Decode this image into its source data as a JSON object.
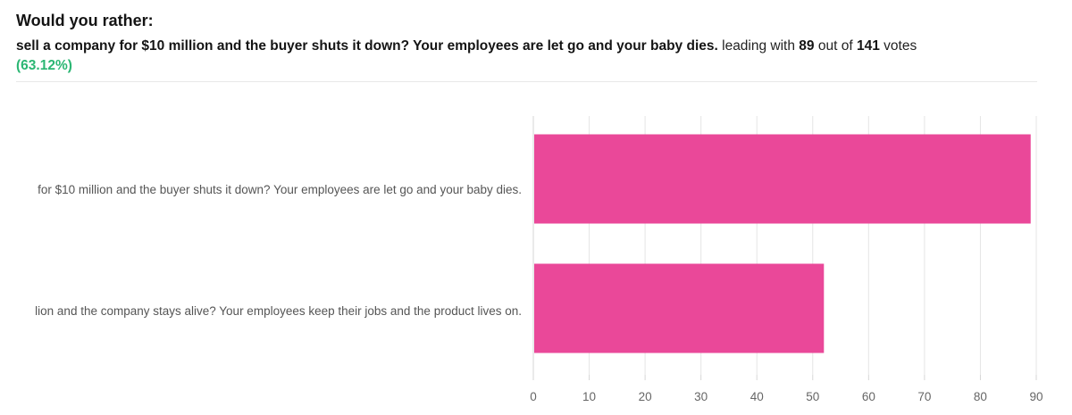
{
  "header": {
    "title": "Would you rather:",
    "leading_option": "sell a company for $10 million and the buyer shuts it down? Your employees are let go and your baby dies.",
    "leading_prefix": "leading with",
    "leading_votes": "89",
    "out_of": "out of",
    "total_votes": "141",
    "votes_word": "votes",
    "percentage": "(63.12%)"
  },
  "colors": {
    "bar": "#ea4899",
    "percent": "#2bb673",
    "grid": "#e5e5e5"
  },
  "chart_data": {
    "type": "bar",
    "orientation": "horizontal",
    "categories": [
      "for $10 million and the buyer shuts it down? Your employees are let go and your baby dies.",
      "lion and the company stays alive? Your employees keep their jobs and the product lives on."
    ],
    "values": [
      89,
      52
    ],
    "xlim": [
      0,
      90
    ],
    "xticks": [
      "0",
      "10",
      "20",
      "30",
      "40",
      "50",
      "60",
      "70",
      "80",
      "90"
    ],
    "grid": true,
    "xlabel": "",
    "ylabel": ""
  }
}
